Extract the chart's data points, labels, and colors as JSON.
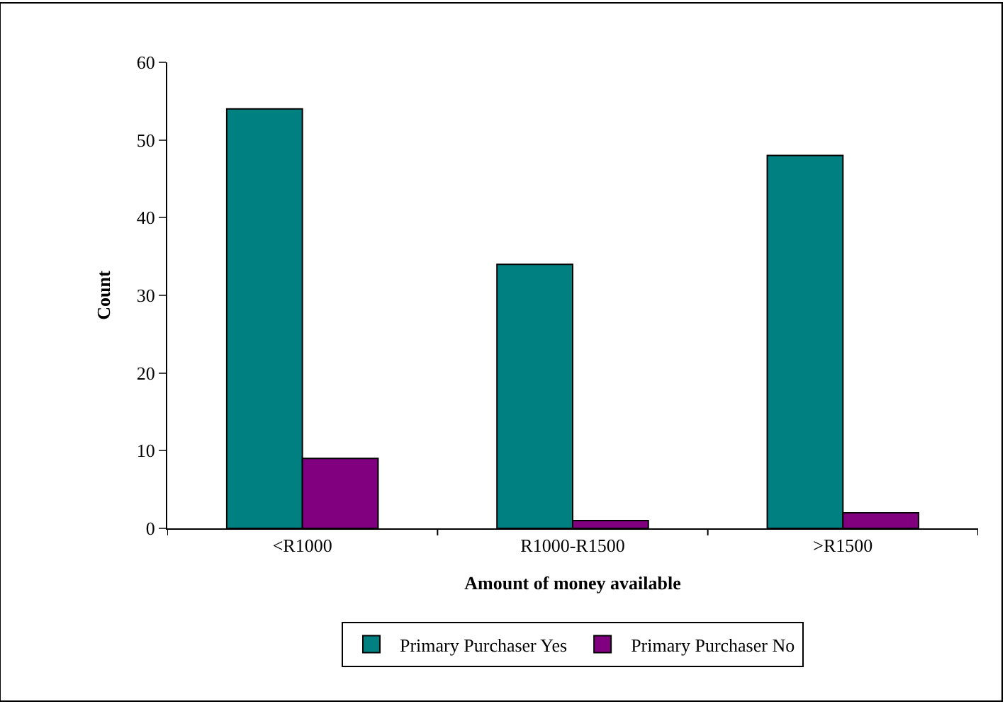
{
  "chart_data": {
    "type": "bar",
    "xlabel": "Amount of money available",
    "ylabel": "Count",
    "categories": [
      "<R1000",
      "R1000-R1500",
      ">R1500"
    ],
    "series": [
      {
        "name": "Primary Purchaser Yes",
        "color": "#008080",
        "values": [
          54,
          34,
          48
        ]
      },
      {
        "name": "Primary Purchaser No",
        "color": "#800080",
        "values": [
          9,
          1,
          2
        ]
      }
    ],
    "ylim": [
      0,
      60
    ],
    "yticks": [
      0,
      10,
      20,
      30,
      40,
      50,
      60
    ],
    "grid": false,
    "legend": "bottom"
  }
}
